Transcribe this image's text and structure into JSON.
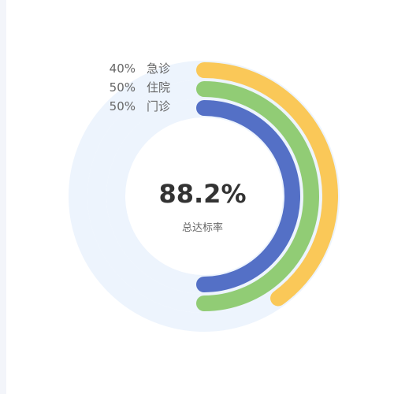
{
  "chart_data": {
    "type": "radial-bar",
    "title": "",
    "center": {
      "value": "88.2%",
      "label": "总达标率"
    },
    "series": [
      {
        "name": "急诊",
        "percent_label": "40%",
        "value": 40,
        "color": "#FAC858"
      },
      {
        "name": "住院",
        "percent_label": "50%",
        "value": 50,
        "color": "#91CC75"
      },
      {
        "name": "门诊",
        "percent_label": "50%",
        "value": 50,
        "color": "#5470C6"
      }
    ],
    "max": 100,
    "track_color": "#EDF4FD",
    "legend_position": "top-left of rings"
  }
}
